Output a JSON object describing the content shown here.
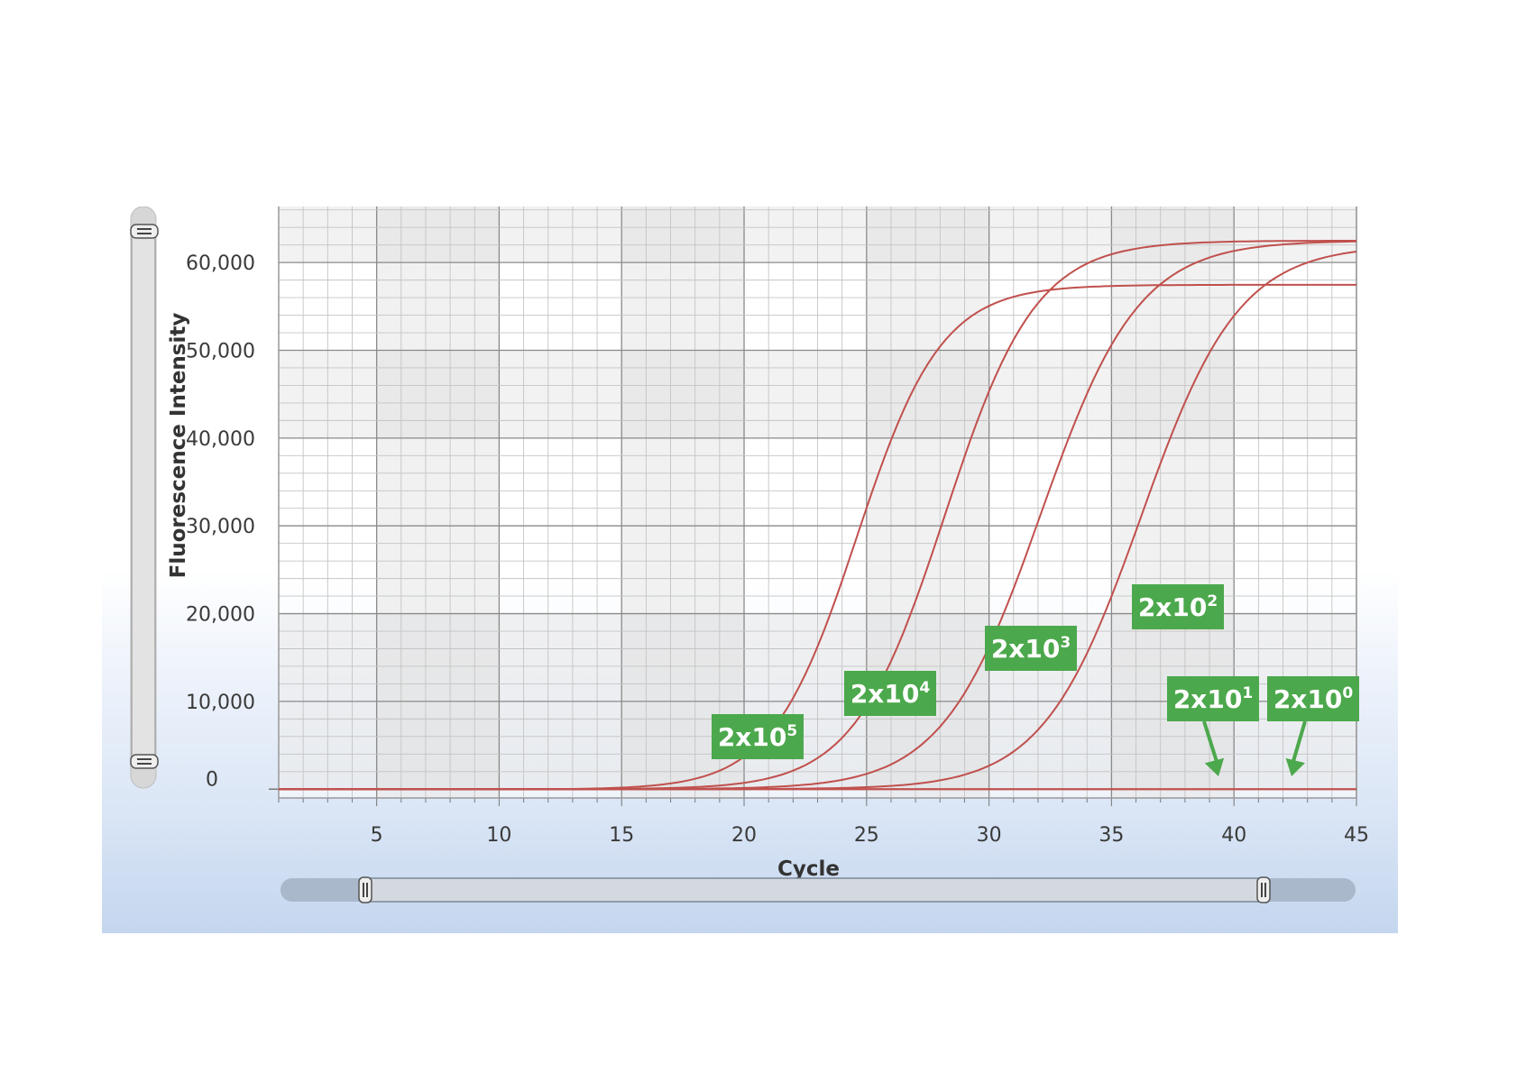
{
  "chart_data": {
    "type": "line",
    "xlabel": "Cycle",
    "ylabel": "Fluorescence Intensity",
    "xlim": [
      1,
      45
    ],
    "ylim": [
      -1000,
      67000
    ],
    "x_ticks": [
      "5",
      "10",
      "15",
      "20",
      "25",
      "30",
      "35",
      "40",
      "45"
    ],
    "y_ticks": [
      "0",
      "10,000",
      "20,000",
      "30,000",
      "40,000",
      "50,000",
      "60,000"
    ],
    "grid": true,
    "line_color": "#c0504d",
    "series": [
      {
        "label": {
          "base": "2x10",
          "exp": "5"
        },
        "midpoint": 24.6,
        "slope": 0.58,
        "plateau": 57500
      },
      {
        "label": {
          "base": "2x10",
          "exp": "4"
        },
        "midpoint": 28.2,
        "slope": 0.54,
        "plateau": 62500
      },
      {
        "label": {
          "base": "2x10",
          "exp": "3"
        },
        "midpoint": 32.1,
        "slope": 0.5,
        "plateau": 62500
      },
      {
        "label": {
          "base": "2x10",
          "exp": "2"
        },
        "midpoint": 36.2,
        "slope": 0.5,
        "plateau": 62000
      },
      {
        "label": {
          "base": "2x10",
          "exp": "1"
        },
        "flat": true
      },
      {
        "label": {
          "base": "2x10",
          "exp": "0"
        },
        "flat": true
      }
    ]
  },
  "colors": {
    "label_bg": "#4ca84c",
    "label_text": "#ffffff",
    "curve": "#c0504d"
  }
}
